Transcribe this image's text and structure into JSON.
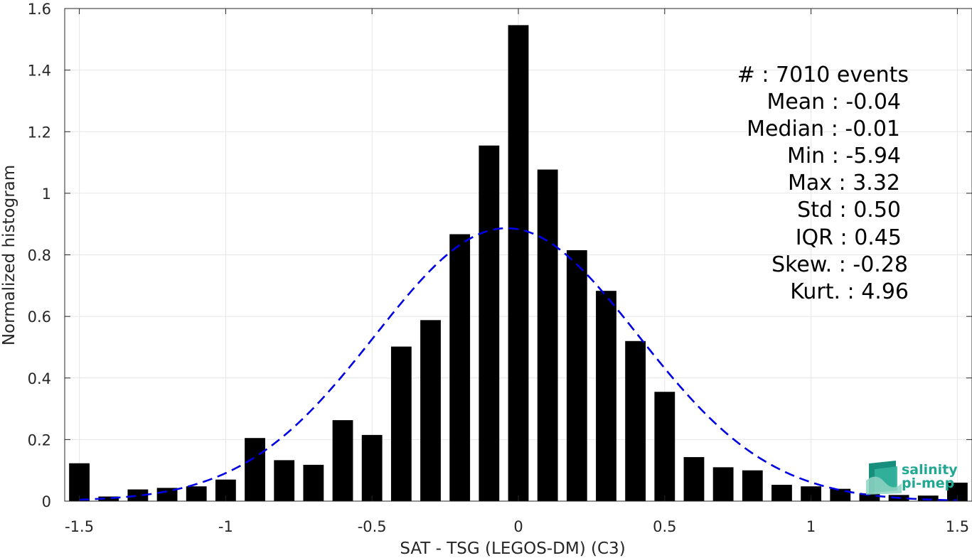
{
  "chart_data": {
    "type": "bar",
    "xlabel": "SAT - TSG (LEGOS-DM) (C3)",
    "ylabel": "Normalized histogram",
    "xlim": [
      -1.55,
      1.55
    ],
    "ylim": [
      0,
      1.6
    ],
    "grid": true,
    "x_ticks": [
      -1.5,
      -1,
      -0.5,
      0,
      0.5,
      1,
      1.5
    ],
    "x_tick_labels": [
      "-1.5",
      "-1",
      "-0.5",
      "0",
      "0.5",
      "1",
      "1.5"
    ],
    "y_ticks": [
      0,
      0.2,
      0.4,
      0.6,
      0.8,
      1,
      1.2,
      1.4,
      1.6
    ],
    "y_tick_labels": [
      "0",
      "0.2",
      "0.4",
      "0.6",
      "0.8",
      "1",
      "1.2",
      "1.4",
      "1.6"
    ],
    "bin_width": 0.1,
    "bar_color": "#000000",
    "x": [
      -1.5,
      -1.4,
      -1.3,
      -1.2,
      -1.1,
      -1.0,
      -0.9,
      -0.8,
      -0.7,
      -0.6,
      -0.5,
      -0.4,
      -0.3,
      -0.2,
      -0.1,
      0.0,
      0.1,
      0.2,
      0.3,
      0.4,
      0.5,
      0.6,
      0.7,
      0.8,
      0.9,
      1.0,
      1.1,
      1.2,
      1.3,
      1.4,
      1.5
    ],
    "values": [
      0.123,
      0.015,
      0.038,
      0.043,
      0.048,
      0.07,
      0.205,
      0.133,
      0.118,
      0.263,
      0.215,
      0.502,
      0.588,
      0.867,
      1.155,
      1.546,
      1.077,
      0.815,
      0.683,
      0.52,
      0.355,
      0.143,
      0.11,
      0.1,
      0.053,
      0.048,
      0.04,
      0.025,
      0.02,
      0.018,
      0.06
    ],
    "fit_curve": {
      "type": "gaussian",
      "mean": -0.04,
      "std": 0.45,
      "color": "#0000e6",
      "style": "dashed"
    },
    "stats": [
      {
        "label": "#  : 7010 events"
      },
      {
        "label": "Mean : -0.04"
      },
      {
        "label": "Median : -0.01"
      },
      {
        "label": "Min : -5.94"
      },
      {
        "label": "Max : 3.32"
      },
      {
        "label": "Std : 0.50"
      },
      {
        "label": "IQR : 0.45"
      },
      {
        "label": "Skew. : -0.28"
      },
      {
        "label": "Kurt. : 4.96"
      }
    ]
  },
  "logo": {
    "line1": "salinity",
    "line2": "pi-mep",
    "color": "#20a893"
  }
}
